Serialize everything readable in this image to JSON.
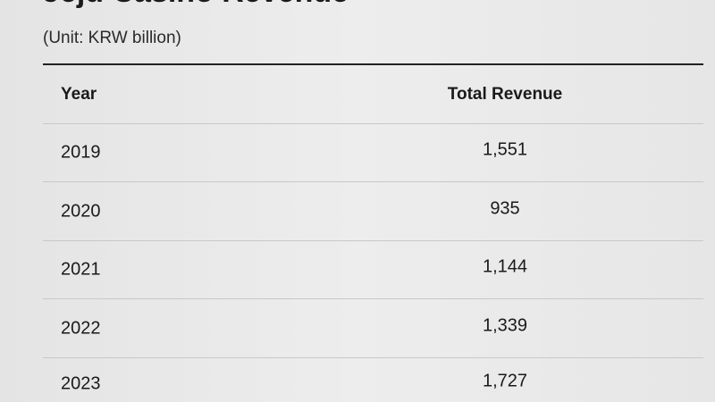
{
  "header": {
    "title": "Jeju Casino Revenue",
    "subtitle": "(Unit: KRW billion)"
  },
  "table": {
    "columns": [
      "Year",
      "Total Revenue"
    ],
    "rows": [
      [
        "2019",
        "1,551"
      ],
      [
        "2020",
        "935"
      ],
      [
        "2021",
        "1,144"
      ],
      [
        "2022",
        "1,339"
      ],
      [
        "2023",
        "1,727"
      ]
    ]
  }
}
